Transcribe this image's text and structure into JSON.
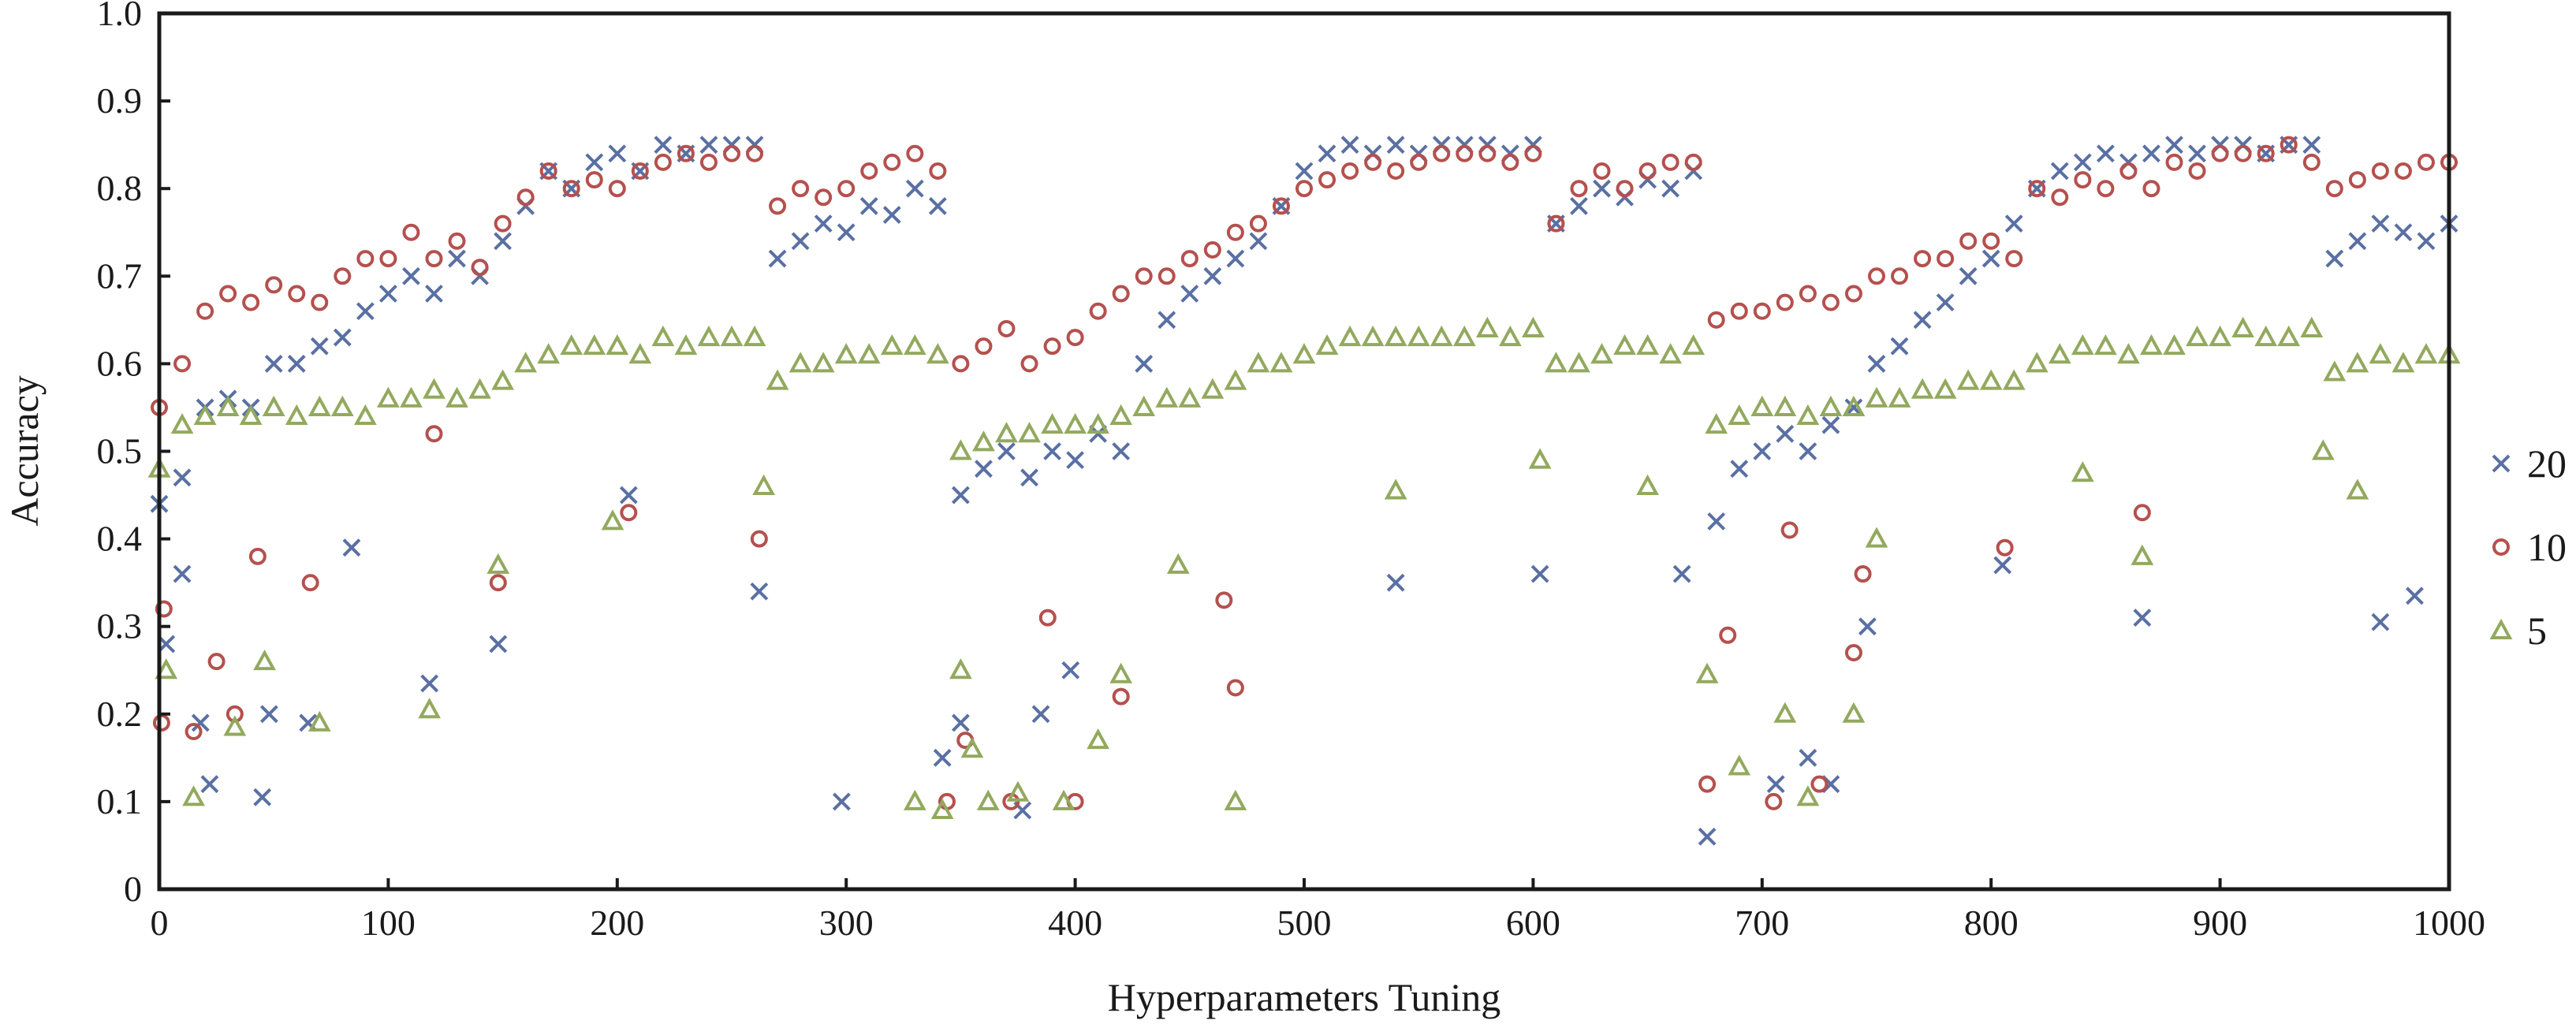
{
  "chart_data": {
    "type": "scatter",
    "title": "",
    "xlabel": "Hyperparameters Tuning",
    "ylabel": "Accuracy",
    "xlim": [
      0,
      1000
    ],
    "ylim": [
      0,
      1.0
    ],
    "grid": false,
    "legend_placement": "right",
    "x_ticks": [
      "0",
      "100",
      "200",
      "300",
      "400",
      "500",
      "600",
      "700",
      "800",
      "900",
      "1000"
    ],
    "y_ticks": [
      "0",
      "0.1",
      "0.2",
      "0.3",
      "0.4",
      "0.5",
      "0.6",
      "0.7",
      "0.8",
      "0.9",
      "1.0"
    ],
    "x": [
      0,
      10,
      20,
      30,
      40,
      50,
      60,
      70,
      80,
      90,
      100,
      110,
      120,
      130,
      140,
      150,
      160,
      170,
      180,
      190,
      200,
      210,
      220,
      230,
      240,
      250,
      260,
      270,
      280,
      290,
      300,
      310,
      320,
      330,
      340,
      350,
      360,
      370,
      380,
      390,
      400,
      410,
      420,
      430,
      440,
      450,
      460,
      470,
      480,
      490,
      500,
      510,
      520,
      530,
      540,
      550,
      560,
      570,
      580,
      590,
      600,
      610,
      620,
      630,
      640,
      650,
      660,
      670,
      680,
      690,
      700,
      710,
      720,
      730,
      740,
      750,
      760,
      770,
      780,
      790,
      800,
      810,
      820,
      830,
      840,
      850,
      860,
      870,
      880,
      890,
      900,
      910,
      920,
      930,
      940,
      950,
      960,
      970,
      980,
      990,
      1000
    ],
    "series": [
      {
        "name": "20",
        "marker": "x",
        "color": "#5a70a3",
        "values": [
          0.44,
          0.47,
          0.55,
          0.56,
          0.55,
          0.6,
          0.6,
          0.62,
          0.63,
          0.66,
          0.68,
          0.7,
          0.68,
          0.72,
          0.7,
          0.74,
          0.78,
          0.82,
          0.8,
          0.83,
          0.84,
          0.82,
          0.85,
          0.84,
          0.85,
          0.85,
          0.85,
          0.72,
          0.74,
          0.76,
          0.75,
          0.78,
          0.77,
          0.8,
          0.78,
          0.45,
          0.48,
          0.5,
          0.47,
          0.5,
          0.49,
          0.52,
          0.5,
          0.6,
          0.65,
          0.68,
          0.7,
          0.72,
          0.74,
          0.78,
          0.82,
          0.84,
          0.85,
          0.84,
          0.85,
          0.84,
          0.85,
          0.85,
          0.85,
          0.84,
          0.85,
          0.76,
          0.78,
          0.8,
          0.79,
          0.81,
          0.8,
          0.82,
          0.42,
          0.48,
          0.5,
          0.52,
          0.5,
          0.53,
          0.55,
          0.6,
          0.62,
          0.65,
          0.67,
          0.7,
          0.72,
          0.76,
          0.8,
          0.82,
          0.83,
          0.84,
          0.83,
          0.84,
          0.85,
          0.84,
          0.85,
          0.85,
          0.84,
          0.85,
          0.85,
          0.72,
          0.74,
          0.76,
          0.75,
          0.74,
          0.76
        ],
        "outliers": [
          [
            3,
            0.28
          ],
          [
            10,
            0.36
          ],
          [
            18,
            0.19
          ],
          [
            22,
            0.12
          ],
          [
            45,
            0.105
          ],
          [
            48,
            0.2
          ],
          [
            65,
            0.19
          ],
          [
            84,
            0.39
          ],
          [
            118,
            0.235
          ],
          [
            148,
            0.28
          ],
          [
            205,
            0.45
          ],
          [
            262,
            0.34
          ],
          [
            298,
            0.1
          ],
          [
            342,
            0.15
          ],
          [
            350,
            0.19
          ],
          [
            377,
            0.09
          ],
          [
            385,
            0.2
          ],
          [
            398,
            0.25
          ],
          [
            540,
            0.35
          ],
          [
            603,
            0.36
          ],
          [
            665,
            0.36
          ],
          [
            676,
            0.06
          ],
          [
            706,
            0.12
          ],
          [
            720,
            0.15
          ],
          [
            730,
            0.12
          ],
          [
            746,
            0.3
          ],
          [
            805,
            0.37
          ],
          [
            866,
            0.31
          ],
          [
            970,
            0.305
          ],
          [
            985,
            0.335
          ]
        ]
      },
      {
        "name": "10",
        "marker": "circle",
        "color": "#b5504e",
        "values": [
          0.55,
          0.6,
          0.66,
          0.68,
          0.67,
          0.69,
          0.68,
          0.67,
          0.7,
          0.72,
          0.72,
          0.75,
          0.72,
          0.74,
          0.71,
          0.76,
          0.79,
          0.82,
          0.8,
          0.81,
          0.8,
          0.82,
          0.83,
          0.84,
          0.83,
          0.84,
          0.84,
          0.78,
          0.8,
          0.79,
          0.8,
          0.82,
          0.83,
          0.84,
          0.82,
          0.6,
          0.62,
          0.64,
          0.6,
          0.62,
          0.63,
          0.66,
          0.68,
          0.7,
          0.7,
          0.72,
          0.73,
          0.75,
          0.76,
          0.78,
          0.8,
          0.81,
          0.82,
          0.83,
          0.82,
          0.83,
          0.84,
          0.84,
          0.84,
          0.83,
          0.84,
          0.76,
          0.8,
          0.82,
          0.8,
          0.82,
          0.83,
          0.83,
          0.65,
          0.66,
          0.66,
          0.67,
          0.68,
          0.67,
          0.68,
          0.7,
          0.7,
          0.72,
          0.72,
          0.74,
          0.74,
          0.72,
          0.8,
          0.79,
          0.81,
          0.8,
          0.82,
          0.8,
          0.83,
          0.82,
          0.84,
          0.84,
          0.84,
          0.85,
          0.83,
          0.8,
          0.81,
          0.82,
          0.82,
          0.83,
          0.83
        ],
        "outliers": [
          [
            1,
            0.19
          ],
          [
            2,
            0.32
          ],
          [
            15,
            0.18
          ],
          [
            25,
            0.26
          ],
          [
            33,
            0.2
          ],
          [
            43,
            0.38
          ],
          [
            66,
            0.35
          ],
          [
            120,
            0.52
          ],
          [
            148,
            0.35
          ],
          [
            205,
            0.43
          ],
          [
            262,
            0.4
          ],
          [
            344,
            0.1
          ],
          [
            352,
            0.17
          ],
          [
            372,
            0.1
          ],
          [
            388,
            0.31
          ],
          [
            400,
            0.1
          ],
          [
            420,
            0.22
          ],
          [
            465,
            0.33
          ],
          [
            470,
            0.23
          ],
          [
            676,
            0.12
          ],
          [
            685,
            0.29
          ],
          [
            705,
            0.1
          ],
          [
            712,
            0.41
          ],
          [
            725,
            0.12
          ],
          [
            740,
            0.27
          ],
          [
            744,
            0.36
          ],
          [
            806,
            0.39
          ],
          [
            866,
            0.43
          ]
        ]
      },
      {
        "name": "5",
        "marker": "triangle",
        "color": "#93a95e",
        "values": [
          0.48,
          0.53,
          0.54,
          0.55,
          0.54,
          0.55,
          0.54,
          0.55,
          0.55,
          0.54,
          0.56,
          0.56,
          0.57,
          0.56,
          0.57,
          0.58,
          0.6,
          0.61,
          0.62,
          0.62,
          0.62,
          0.61,
          0.63,
          0.62,
          0.63,
          0.63,
          0.63,
          0.58,
          0.6,
          0.6,
          0.61,
          0.61,
          0.62,
          0.62,
          0.61,
          0.5,
          0.51,
          0.52,
          0.52,
          0.53,
          0.53,
          0.53,
          0.54,
          0.55,
          0.56,
          0.56,
          0.57,
          0.58,
          0.6,
          0.6,
          0.61,
          0.62,
          0.63,
          0.63,
          0.63,
          0.63,
          0.63,
          0.63,
          0.64,
          0.63,
          0.64,
          0.6,
          0.6,
          0.61,
          0.62,
          0.62,
          0.61,
          0.62,
          0.53,
          0.54,
          0.55,
          0.55,
          0.54,
          0.55,
          0.55,
          0.56,
          0.56,
          0.57,
          0.57,
          0.58,
          0.58,
          0.58,
          0.6,
          0.61,
          0.62,
          0.62,
          0.61,
          0.62,
          0.62,
          0.63,
          0.63,
          0.64,
          0.63,
          0.63,
          0.64,
          0.59,
          0.6,
          0.61,
          0.6,
          0.61,
          0.61
        ],
        "outliers": [
          [
            3,
            0.25
          ],
          [
            15,
            0.105
          ],
          [
            33,
            0.185
          ],
          [
            46,
            0.26
          ],
          [
            70,
            0.19
          ],
          [
            118,
            0.205
          ],
          [
            148,
            0.37
          ],
          [
            198,
            0.42
          ],
          [
            264,
            0.46
          ],
          [
            330,
            0.1
          ],
          [
            342,
            0.09
          ],
          [
            350,
            0.25
          ],
          [
            355,
            0.16
          ],
          [
            362,
            0.1
          ],
          [
            375,
            0.11
          ],
          [
            395,
            0.1
          ],
          [
            410,
            0.17
          ],
          [
            420,
            0.245
          ],
          [
            445,
            0.37
          ],
          [
            470,
            0.1
          ],
          [
            540,
            0.455
          ],
          [
            603,
            0.49
          ],
          [
            650,
            0.46
          ],
          [
            676,
            0.245
          ],
          [
            690,
            0.14
          ],
          [
            710,
            0.2
          ],
          [
            720,
            0.105
          ],
          [
            740,
            0.2
          ],
          [
            750,
            0.4
          ],
          [
            840,
            0.475
          ],
          [
            866,
            0.38
          ],
          [
            945,
            0.5
          ],
          [
            960,
            0.455
          ]
        ]
      }
    ]
  }
}
